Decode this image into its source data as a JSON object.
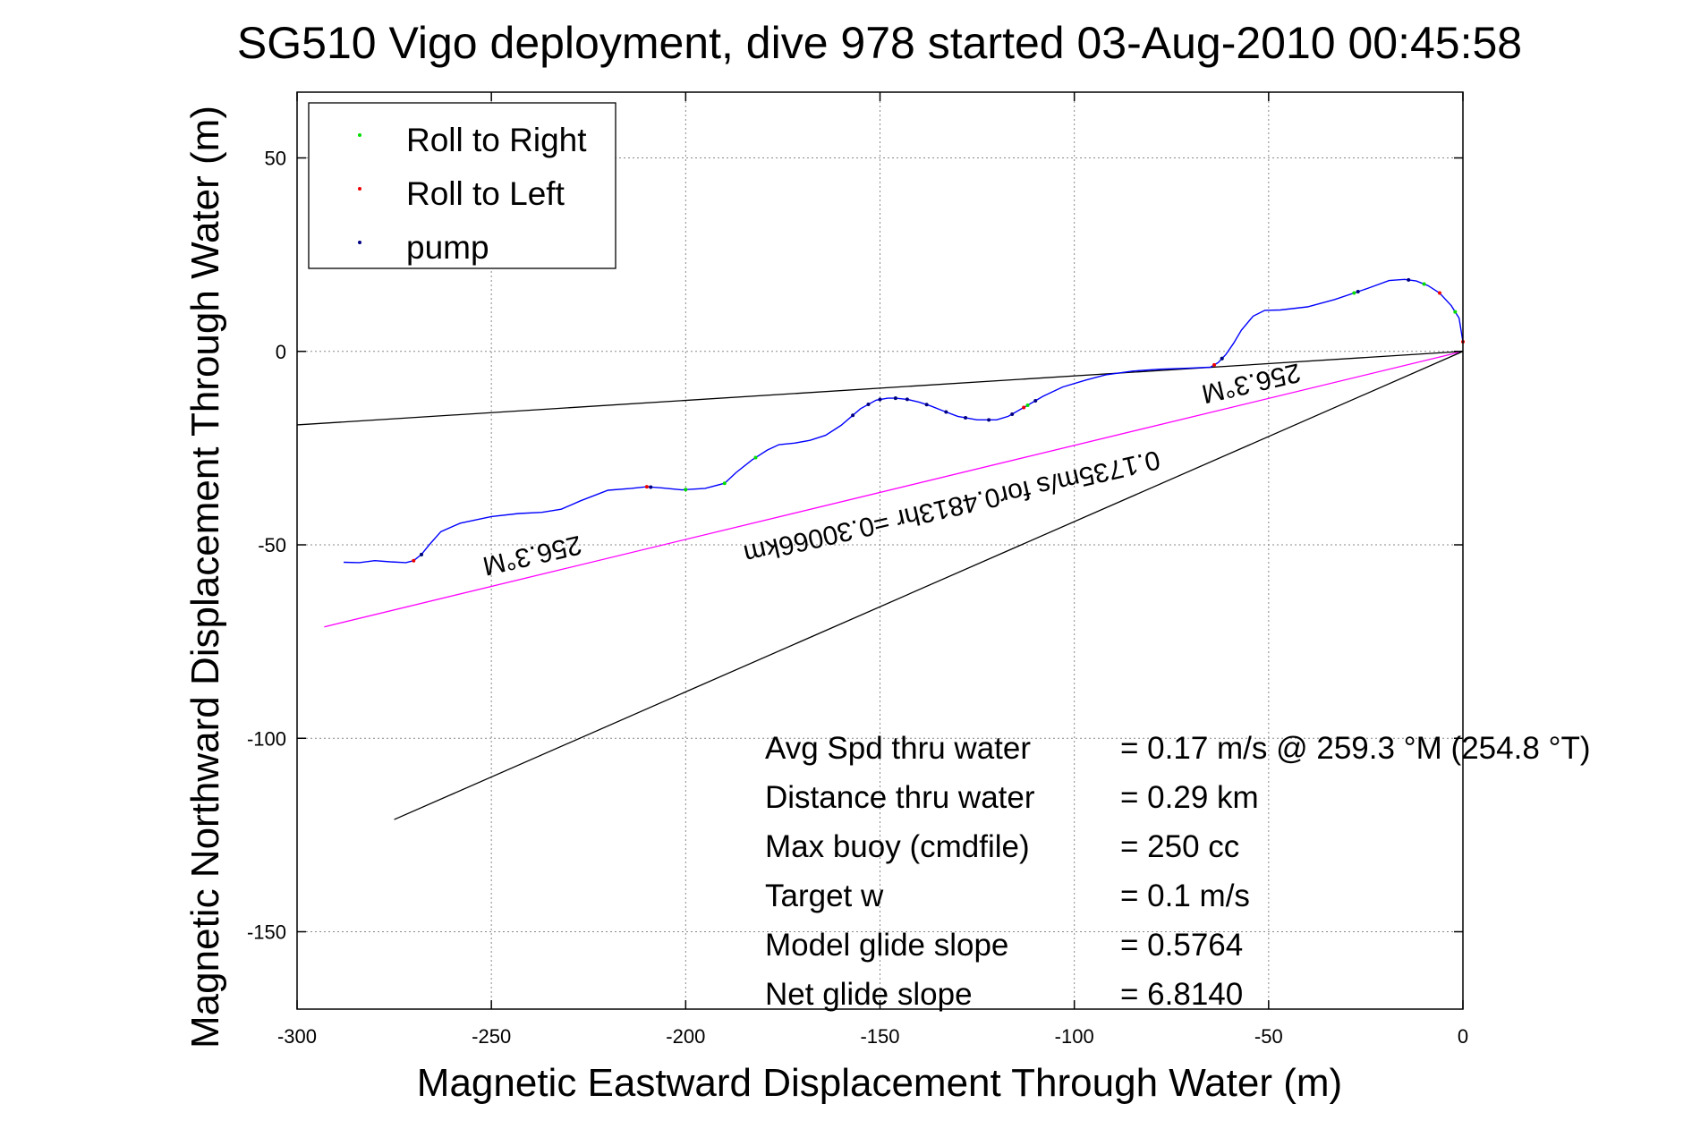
{
  "chart_data": {
    "type": "line",
    "title": "SG510 Vigo deployment, dive 978 started 03-Aug-2010 00:45:58",
    "xlabel": "Magnetic Eastward Displacement Through Water (m)",
    "ylabel": "Magnetic Northward Displacement Through Water (m)",
    "xlim": [
      -300,
      0
    ],
    "ylim": [
      -170,
      67
    ],
    "x_ticks": [
      -300,
      -250,
      -200,
      -150,
      -100,
      -50,
      0
    ],
    "y_ticks": [
      -150,
      -100,
      -50,
      0,
      50
    ],
    "grid": true,
    "legend_position": "top-left",
    "legend": [
      {
        "label": "Roll to Right",
        "color": "#00dd00"
      },
      {
        "label": "Roll to Left",
        "color": "#ee0000"
      },
      {
        "label": "pump",
        "color": "#000080"
      }
    ],
    "track": {
      "color": "#0000ff",
      "x": [
        -288,
        -284,
        -280,
        -276,
        -272,
        -270,
        -268,
        -266,
        -263,
        -258,
        -250,
        -243,
        -237,
        -232,
        -227,
        -220,
        -214,
        -210,
        -206,
        -201,
        -195,
        -190,
        -187,
        -183,
        -179,
        -176,
        -172,
        -168,
        -164,
        -160,
        -155,
        -151,
        -148,
        -146,
        -143,
        -140,
        -137,
        -134,
        -130,
        -125,
        -120,
        -117,
        -113,
        -108,
        -103,
        -97,
        -92,
        -85,
        -78,
        -70,
        -65,
        -63,
        -61,
        -59,
        -57,
        -54,
        -51,
        -47,
        -40,
        -33,
        -25,
        -19,
        -15,
        -12,
        -9,
        -6,
        -3,
        -1,
        0
      ],
      "y": [
        -54.5,
        -54.6,
        -54.1,
        -54.4,
        -54.6,
        -54.1,
        -52.5,
        -50,
        -46.6,
        -44.4,
        -42.7,
        -41.9,
        -41.6,
        -40.8,
        -38.6,
        -35.9,
        -35.4,
        -35,
        -35.3,
        -35.8,
        -35.4,
        -34.1,
        -31.3,
        -28.1,
        -25.5,
        -24.1,
        -23.7,
        -23,
        -21.7,
        -19.1,
        -14.8,
        -12.6,
        -12.1,
        -12.1,
        -12.4,
        -13.1,
        -14.1,
        -15.3,
        -16.8,
        -17.7,
        -17.7,
        -16.8,
        -14.5,
        -11.6,
        -9.2,
        -7.4,
        -6.1,
        -5.1,
        -4.6,
        -4.3,
        -4.1,
        -2.9,
        -0.8,
        2.1,
        5.5,
        9.1,
        10.6,
        10.7,
        11.5,
        13.4,
        16.1,
        18.3,
        18.6,
        18.2,
        17,
        15.1,
        11.8,
        8.6,
        2.5
      ]
    },
    "roll_right_x": [
      -268,
      -200,
      -190,
      -182,
      -146,
      -112,
      -62,
      -28,
      -10,
      -2
    ],
    "roll_left_x": [
      -270,
      -210,
      -113,
      -64,
      -6,
      0
    ],
    "pump_x": [
      -268,
      -209,
      -157,
      -153,
      -150,
      -146,
      -143,
      -138,
      -133,
      -128,
      -122,
      -116,
      -110,
      -62,
      -27,
      -14
    ],
    "reference_lines": [
      {
        "x": [
          0,
          -300
        ],
        "y": [
          0,
          -19
        ],
        "color": "#000000"
      },
      {
        "x": [
          0,
          -293
        ],
        "y": [
          0,
          -71.2
        ],
        "color": "#ff00ff"
      },
      {
        "x": [
          0,
          -275
        ],
        "y": [
          0,
          -121
        ],
        "color": "#000000"
      }
    ],
    "annotations": [
      {
        "text": "256.3°M",
        "x": -240,
        "y": -50.5,
        "angle": 167
      },
      {
        "text": "0.1735m/s for0.4813hr =0.30066km",
        "x": -132,
        "y": -38,
        "angle": 167
      },
      {
        "text": "256.3°M",
        "x": -55,
        "y": -6,
        "angle": 167
      }
    ],
    "stats": [
      {
        "label": "Avg Spd thru water",
        "value": "=  0.17 m/s @ 259.3 °M (254.8 °T)"
      },
      {
        "label": "Distance thru water",
        "value": "=  0.29 km"
      },
      {
        "label": "Max buoy (cmdfile)",
        "value": "= 250 cc"
      },
      {
        "label": "Target w",
        "value": "= 0.1 m/s"
      },
      {
        "label": "Model glide slope",
        "value": "= 0.5764"
      },
      {
        "label": "Net glide slope",
        "value": "= 6.8140"
      }
    ]
  }
}
